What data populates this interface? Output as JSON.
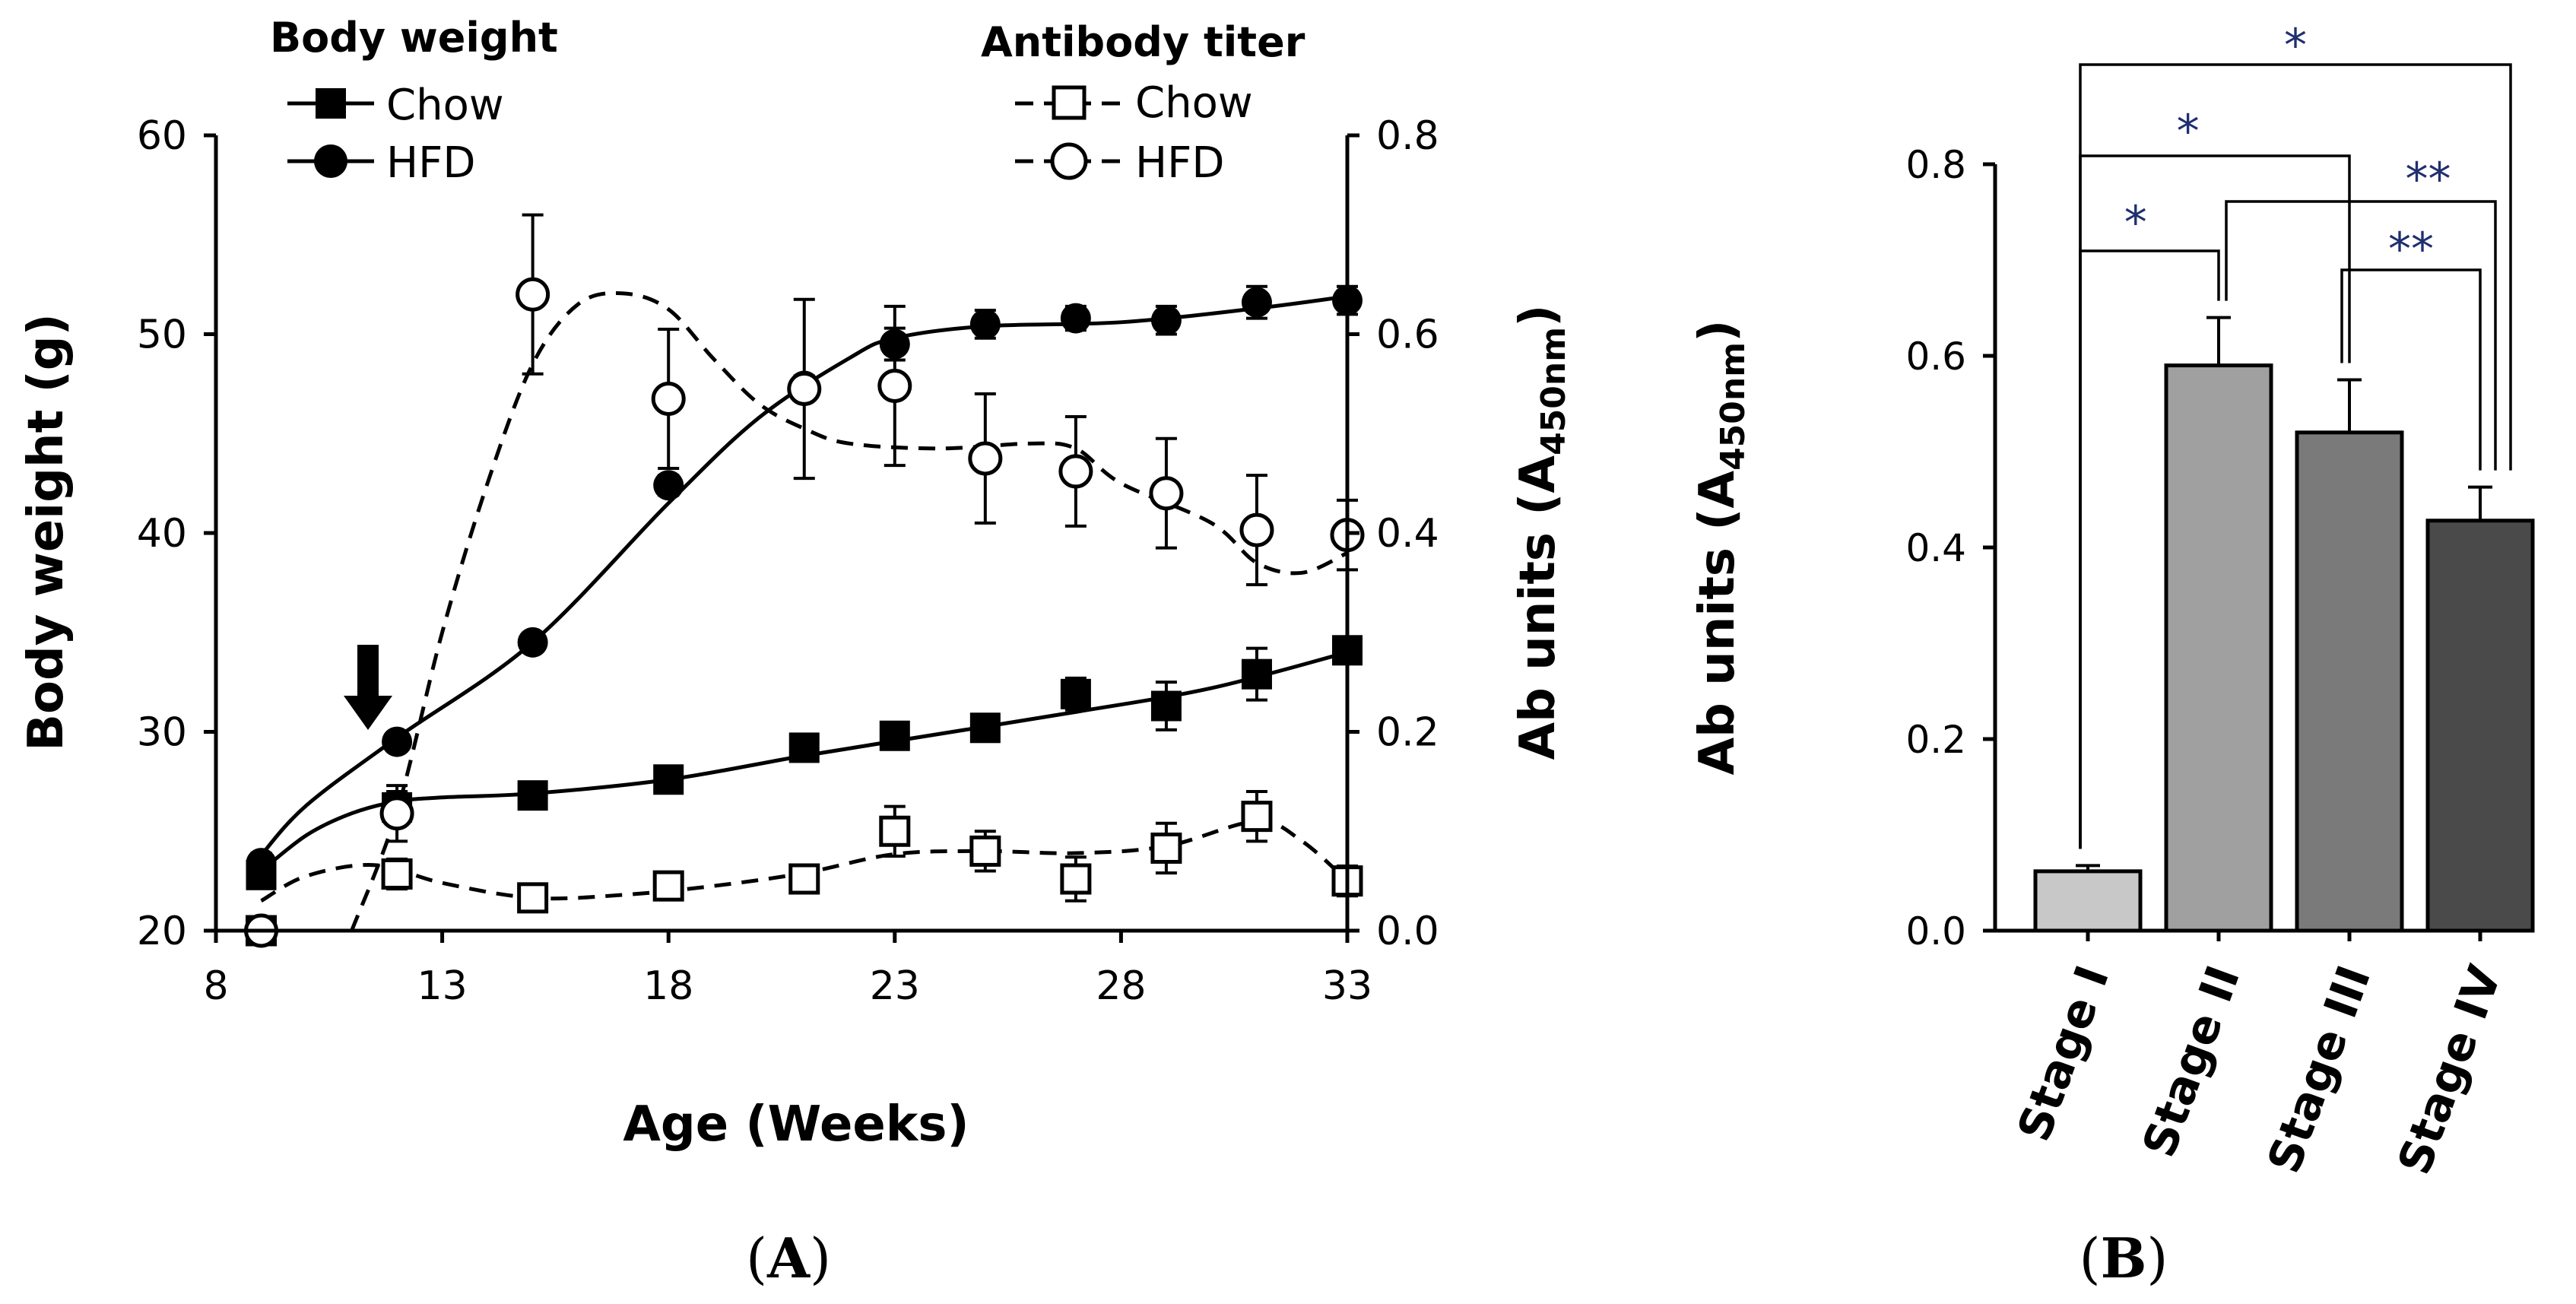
{
  "chart_data": [
    {
      "type": "line",
      "panel": "A",
      "xlabel": "Age (Weeks)",
      "ylabel": "Body weight (g)",
      "y2label_prefix": "Ab units (A",
      "y2label_sub": "450nm",
      "y2label_suffix": ")",
      "xlim": [
        8,
        33
      ],
      "xticks": [
        "8",
        "13",
        "18",
        "23",
        "28",
        "33"
      ],
      "ylim": [
        20,
        60
      ],
      "yticks": [
        "20",
        "30",
        "40",
        "50",
        "60"
      ],
      "y2lim": [
        0.0,
        0.8
      ],
      "y2ticks": [
        "0.0",
        "0.2",
        "0.4",
        "0.6",
        "0.8"
      ],
      "legend": {
        "body_weight_title": "Body weight",
        "antibody_titer_title": "Antibody titer",
        "chow": "Chow",
        "hfd": "HFD"
      },
      "arrow_at_week": 11,
      "series": [
        {
          "name": "Body weight Chow",
          "axis": "left",
          "marker": "square-filled",
          "line": "solid",
          "x": [
            9,
            12,
            15,
            18,
            21,
            23,
            25,
            27,
            29,
            31,
            33
          ],
          "values": [
            22.8,
            26.2,
            26.8,
            27.6,
            29.2,
            29.8,
            30.2,
            31.9,
            31.3,
            32.9,
            34.1
          ],
          "errors": [
            0.4,
            0.8,
            0.4,
            0.4,
            0.5,
            0.6,
            0.5,
            0.8,
            1.2,
            1.3,
            0.5
          ]
        },
        {
          "name": "Body weight HFD",
          "axis": "left",
          "marker": "circle-filled",
          "line": "solid",
          "x": [
            9,
            12,
            15,
            18,
            21,
            23,
            25,
            27,
            29,
            31,
            33
          ],
          "values": [
            23.4,
            29.5,
            34.5,
            42.4,
            47.4,
            49.5,
            50.5,
            50.8,
            50.7,
            51.6,
            51.7
          ],
          "errors": [
            0.5,
            0.4,
            0.4,
            0.5,
            0.5,
            0.8,
            0.7,
            0.6,
            0.7,
            0.8,
            0.7
          ]
        },
        {
          "name": "Antibody titer Chow",
          "axis": "right",
          "marker": "square-open",
          "line": "dashed",
          "x": [
            9,
            12,
            15,
            18,
            21,
            23,
            25,
            27,
            29,
            31,
            33
          ],
          "values": [
            0.0,
            0.057,
            0.033,
            0.045,
            0.052,
            0.1,
            0.08,
            0.052,
            0.083,
            0.115,
            0.05
          ],
          "errors": [
            0.0,
            0.015,
            0.008,
            0.01,
            0.012,
            0.025,
            0.02,
            0.022,
            0.025,
            0.025,
            0.015
          ]
        },
        {
          "name": "Antibody titer HFD",
          "axis": "right",
          "marker": "circle-open",
          "line": "dashed",
          "x": [
            9,
            12,
            15,
            18,
            21,
            23,
            25,
            27,
            29,
            31,
            33
          ],
          "values": [
            0.0,
            0.118,
            0.64,
            0.535,
            0.545,
            0.548,
            0.475,
            0.462,
            0.44,
            0.403,
            0.398
          ],
          "errors": [
            0.0,
            0.028,
            0.08,
            0.07,
            0.09,
            0.08,
            0.065,
            0.055,
            0.055,
            0.055,
            0.035
          ]
        }
      ],
      "fit_curves": {
        "chow_weight": [
          [
            9,
            23.0
          ],
          [
            10,
            24.8
          ],
          [
            11,
            25.9
          ],
          [
            12,
            26.5
          ],
          [
            13,
            26.7
          ],
          [
            15,
            26.9
          ],
          [
            18,
            27.6
          ],
          [
            21,
            28.8
          ],
          [
            24,
            29.9
          ],
          [
            27,
            31.0
          ],
          [
            30,
            32.2
          ],
          [
            33,
            34.0
          ]
        ],
        "hfd_weight": [
          [
            9,
            23.8
          ],
          [
            10,
            26.3
          ],
          [
            12,
            29.7
          ],
          [
            15,
            34.5
          ],
          [
            18,
            41.5
          ],
          [
            20,
            45.8
          ],
          [
            22,
            48.8
          ],
          [
            23,
            49.8
          ],
          [
            25,
            50.4
          ],
          [
            28,
            50.6
          ],
          [
            31,
            51.3
          ],
          [
            33,
            51.9
          ]
        ],
        "chow_titer": [
          [
            9,
            0.03
          ],
          [
            10,
            0.055
          ],
          [
            11.5,
            0.066
          ],
          [
            13,
            0.048
          ],
          [
            15,
            0.033
          ],
          [
            17,
            0.036
          ],
          [
            19,
            0.045
          ],
          [
            21,
            0.058
          ],
          [
            23,
            0.077
          ],
          [
            25,
            0.08
          ],
          [
            27,
            0.078
          ],
          [
            29,
            0.085
          ],
          [
            31,
            0.11
          ],
          [
            32,
            0.09
          ],
          [
            33,
            0.05
          ]
        ],
        "hfd_titer": [
          [
            11,
            0.0
          ],
          [
            12,
            0.12
          ],
          [
            13,
            0.3
          ],
          [
            14,
            0.45
          ],
          [
            15,
            0.57
          ],
          [
            16,
            0.63
          ],
          [
            17,
            0.641
          ],
          [
            18,
            0.625
          ],
          [
            19,
            0.575
          ],
          [
            20,
            0.53
          ],
          [
            21,
            0.505
          ],
          [
            22,
            0.49
          ],
          [
            24,
            0.485
          ],
          [
            26,
            0.49
          ],
          [
            27,
            0.485
          ],
          [
            28,
            0.45
          ],
          [
            30,
            0.41
          ],
          [
            31,
            0.37
          ],
          [
            32,
            0.36
          ],
          [
            33,
            0.38
          ]
        ]
      }
    },
    {
      "type": "bar",
      "panel": "B",
      "ylabel_prefix": "Ab units (A",
      "ylabel_sub": "450nm",
      "ylabel_suffix": ")",
      "categories": [
        "Stage I",
        "Stage II",
        "Stage III",
        "Stage IV"
      ],
      "values": [
        0.062,
        0.59,
        0.52,
        0.428
      ],
      "errors": [
        0.006,
        0.05,
        0.055,
        0.035
      ],
      "colors": [
        "#c8c8c8",
        "#a0a0a0",
        "#7a7a7a",
        "#4a4a4a"
      ],
      "ylim": [
        0.0,
        0.8
      ],
      "yticks": [
        "0.0",
        "0.2",
        "0.4",
        "0.6",
        "0.8"
      ],
      "significance": [
        {
          "from": 0,
          "to": 1,
          "label": "*"
        },
        {
          "from": 0,
          "to": 2,
          "label": "*"
        },
        {
          "from": 0,
          "to": 3,
          "label": "*"
        },
        {
          "from": 1,
          "to": 3,
          "label": "**"
        },
        {
          "from": 2,
          "to": 3,
          "label": "**"
        }
      ]
    }
  ],
  "panel_labels": {
    "a_open": "(",
    "a_letter": "A",
    "a_close": ")",
    "b_open": "(",
    "b_letter": "B",
    "b_close": ")"
  },
  "colors": {
    "significance": "#1f2f6f",
    "line": "#000000"
  }
}
